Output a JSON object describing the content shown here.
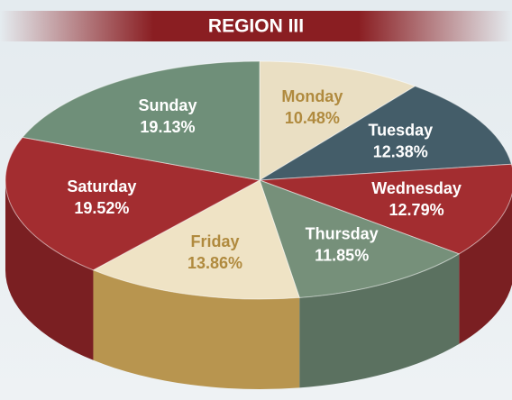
{
  "chart_data": {
    "type": "pie",
    "title": "REGION III",
    "categories": [
      "Monday",
      "Tuesday",
      "Wednesday",
      "Thursday",
      "Friday",
      "Saturday",
      "Sunday"
    ],
    "values": [
      10.48,
      12.38,
      12.79,
      11.85,
      13.86,
      19.52,
      19.13
    ],
    "value_labels": [
      "10.48%",
      "12.38%",
      "12.79%",
      "11.85%",
      "13.86%",
      "19.52%",
      "19.13%"
    ],
    "colors": [
      "#eadfc3",
      "#445d69",
      "#a32d30",
      "#76907a",
      "#efe3c5",
      "#a32d30",
      "#6f8f79"
    ],
    "side_colors": [
      "#b8954f",
      "#2f444e",
      "#7a1f22",
      "#5b7160",
      "#b8954f",
      "#7a1f22",
      "#55705d"
    ]
  }
}
